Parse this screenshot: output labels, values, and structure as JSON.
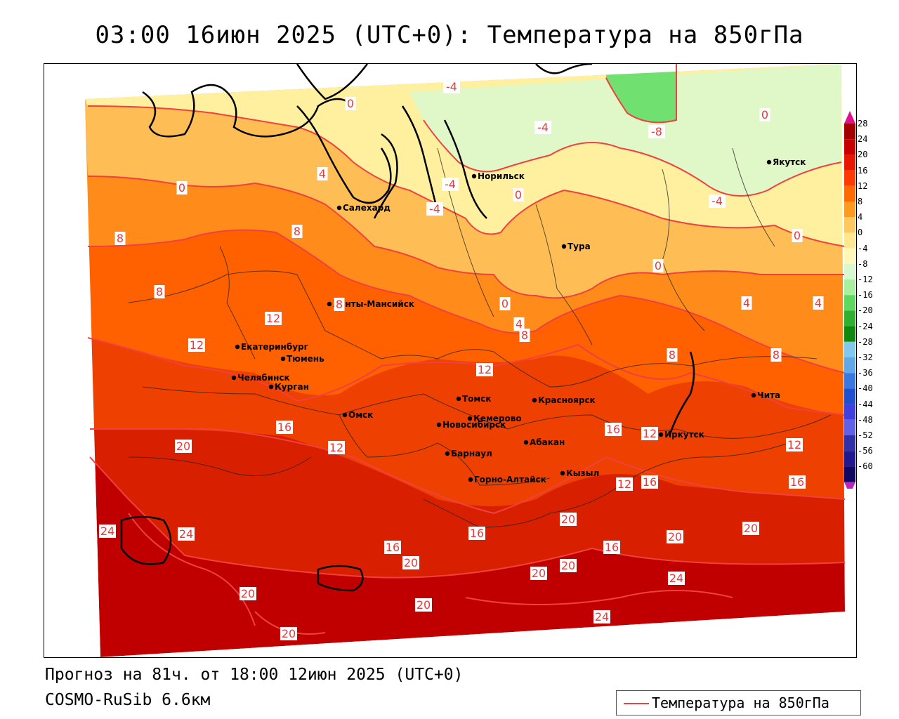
{
  "header": {
    "title": "03:00 16июн 2025 (UTC+0): Температура на 850гПа"
  },
  "footer": {
    "forecast": "Прогноз на 81ч. от 18:00 12июн 2025 (UTC+0)",
    "model": "COSMO-RuSib 6.6км"
  },
  "legend": {
    "label": "Температура на 850гПа",
    "line_color": "#f04040"
  },
  "colorbar": {
    "ticks": [
      "28",
      "24",
      "20",
      "16",
      "12",
      "8",
      "4",
      "0",
      "-4",
      "-8",
      "-12",
      "-16",
      "-20",
      "-24",
      "-28",
      "-32",
      "-36",
      "-40",
      "-44",
      "-48",
      "-52",
      "-56",
      "-60"
    ],
    "colors": [
      "#a40000",
      "#c80000",
      "#e81800",
      "#ff3a00",
      "#ff6a00",
      "#ff9a20",
      "#ffc860",
      "#ffe890",
      "#fff8b8",
      "#d8f8d0",
      "#a8f0a0",
      "#60d860",
      "#30b030",
      "#108810",
      "#80c8f0",
      "#60a8e8",
      "#3878e0",
      "#2050d0",
      "#4040e0",
      "#6060e8",
      "#3030a8",
      "#201890",
      "#100860"
    ],
    "top_color": "#e01090",
    "bottom_color": "#c020c0"
  },
  "cities": [
    {
      "name": "Норильск"
    },
    {
      "name": "Якутск"
    },
    {
      "name": "Салехард"
    },
    {
      "name": "Тура"
    },
    {
      "name": "Ханты-Мансийск"
    },
    {
      "name": "Екатеринбург"
    },
    {
      "name": "Тюмень"
    },
    {
      "name": "Челябинск"
    },
    {
      "name": "Курган"
    },
    {
      "name": "Омск"
    },
    {
      "name": "Томск"
    },
    {
      "name": "Красноярск"
    },
    {
      "name": "Новосибирск"
    },
    {
      "name": "Кемерово"
    },
    {
      "name": "Абакан"
    },
    {
      "name": "Барнаул"
    },
    {
      "name": "Горно-Алтайск"
    },
    {
      "name": "Кызыл"
    },
    {
      "name": "Иркутск"
    },
    {
      "name": "Чита"
    }
  ],
  "contour_labels": [
    {
      "text": "0"
    },
    {
      "text": "-4"
    },
    {
      "text": "-4"
    },
    {
      "text": "-8"
    },
    {
      "text": "0"
    },
    {
      "text": "0"
    },
    {
      "text": "4"
    },
    {
      "text": "-4"
    },
    {
      "text": "-4"
    },
    {
      "text": "0"
    },
    {
      "text": "-4"
    },
    {
      "text": "8"
    },
    {
      "text": "8"
    },
    {
      "text": "0"
    },
    {
      "text": "0"
    },
    {
      "text": "8"
    },
    {
      "text": "8"
    },
    {
      "text": "12"
    },
    {
      "text": "0"
    },
    {
      "text": "4"
    },
    {
      "text": "4"
    },
    {
      "text": "4"
    },
    {
      "text": "12"
    },
    {
      "text": "8"
    },
    {
      "text": "8"
    },
    {
      "text": "8"
    },
    {
      "text": "12"
    },
    {
      "text": "16"
    },
    {
      "text": "20"
    },
    {
      "text": "12"
    },
    {
      "text": "16"
    },
    {
      "text": "12"
    },
    {
      "text": "12"
    },
    {
      "text": "16"
    },
    {
      "text": "12"
    },
    {
      "text": "16"
    },
    {
      "text": "24"
    },
    {
      "text": "24"
    },
    {
      "text": "16"
    },
    {
      "text": "16"
    },
    {
      "text": "20"
    },
    {
      "text": "20"
    },
    {
      "text": "20"
    },
    {
      "text": "16"
    },
    {
      "text": "20"
    },
    {
      "text": "20"
    },
    {
      "text": "20"
    },
    {
      "text": "24"
    },
    {
      "text": "20"
    },
    {
      "text": "20"
    },
    {
      "text": "24"
    },
    {
      "text": "20"
    }
  ]
}
